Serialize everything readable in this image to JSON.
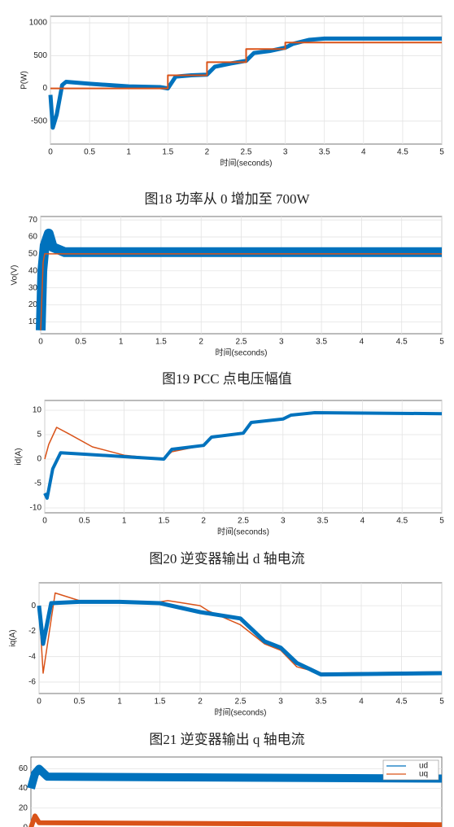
{
  "chart_data": [
    {
      "type": "line",
      "xlabel": "时间(seconds)",
      "ylabel": "P(W)",
      "caption": "图18  功率从 0 增加至 700W",
      "xlim": [
        0,
        5
      ],
      "ylim": [
        -850,
        1100
      ],
      "xticks": [
        0,
        0.5,
        1,
        1.5,
        2,
        2.5,
        3,
        3.5,
        4,
        4.5,
        5
      ],
      "yticks": [
        -500,
        0,
        500,
        1000
      ],
      "grid": true,
      "series": [
        {
          "color": "#0072bd",
          "x": [
            0,
            0.03,
            0.08,
            0.15,
            0.2,
            0.5,
            1,
            1.4,
            1.5,
            1.6,
            1.8,
            2,
            2.1,
            2.3,
            2.5,
            2.6,
            2.8,
            3,
            3.1,
            3.3,
            3.5,
            4,
            4.5,
            5
          ],
          "values": [
            -100,
            -600,
            -400,
            50,
            100,
            70,
            30,
            20,
            0,
            180,
            200,
            210,
            330,
            380,
            420,
            540,
            570,
            620,
            680,
            740,
            760,
            760,
            760,
            760
          ]
        },
        {
          "color": "#d95319",
          "x": [
            0,
            1.5,
            1.5,
            2,
            2,
            2.5,
            2.5,
            3,
            3,
            5
          ],
          "values": [
            0,
            0,
            200,
            200,
            400,
            400,
            600,
            600,
            700,
            700
          ]
        }
      ]
    },
    {
      "type": "line",
      "xlabel": "时间(seconds)",
      "ylabel": "Vo(V)",
      "caption": "图19  PCC 点电压幅值",
      "xlim": [
        0,
        5
      ],
      "ylim": [
        3,
        72
      ],
      "xticks": [
        0,
        0.5,
        1,
        1.5,
        2,
        2.5,
        3,
        3.5,
        4,
        4.5,
        5
      ],
      "yticks": [
        10,
        20,
        30,
        40,
        50,
        60,
        70
      ],
      "grid": true,
      "series": [
        {
          "color": "#0072bd",
          "x": [
            0,
            0.02,
            0.05,
            0.1,
            0.15,
            0.3,
            5
          ],
          "values": [
            5,
            40,
            55,
            62,
            54,
            51,
            51
          ]
        },
        {
          "color": "#d95319",
          "x": [
            0,
            0.03,
            0.05,
            5
          ],
          "values": [
            5,
            45,
            50,
            50
          ]
        }
      ]
    },
    {
      "type": "line",
      "xlabel": "时间(seconds)",
      "ylabel": "id(A)",
      "caption": "图20  逆变器输出 d 轴电流",
      "xlim": [
        0,
        5
      ],
      "ylim": [
        -11,
        12
      ],
      "xticks": [
        0,
        0.5,
        1,
        1.5,
        2,
        2.5,
        3,
        3.5,
        4,
        4.5,
        5
      ],
      "yticks": [
        -10,
        -5,
        0,
        5,
        10
      ],
      "grid": true,
      "series": [
        {
          "color": "#d95319",
          "x": [
            0,
            0.05,
            0.15,
            0.3,
            0.6,
            1,
            1.5,
            1.6,
            2,
            2.1,
            2.5,
            2.6,
            3,
            3.1,
            3.4,
            5
          ],
          "values": [
            0,
            3,
            6.5,
            5.2,
            2.5,
            0.8,
            0,
            1.5,
            2.8,
            4.5,
            5.5,
            7.5,
            8.2,
            9,
            9.6,
            9.3
          ]
        },
        {
          "color": "#0072bd",
          "x": [
            0,
            0.03,
            0.1,
            0.2,
            0.5,
            1,
            1.5,
            1.6,
            2,
            2.1,
            2.5,
            2.6,
            3,
            3.1,
            3.4,
            5
          ],
          "values": [
            -7,
            -8,
            -2,
            1.3,
            1,
            0.5,
            0,
            2,
            2.8,
            4.5,
            5.3,
            7.5,
            8.2,
            9,
            9.5,
            9.3
          ]
        }
      ]
    },
    {
      "type": "line",
      "xlabel": "时间(seconds)",
      "ylabel": "iq(A)",
      "caption": "图21  逆变器输出 q 轴电流",
      "xlim": [
        0,
        5
      ],
      "ylim": [
        -6.9,
        1.8
      ],
      "xticks": [
        0,
        0.5,
        1,
        1.5,
        2,
        2.5,
        3,
        3.5,
        4,
        4.5,
        5
      ],
      "yticks": [
        -6,
        -4,
        -2,
        0
      ],
      "grid": true,
      "series": [
        {
          "color": "#d95319",
          "x": [
            0,
            0.05,
            0.2,
            0.5,
            1,
            1.5,
            1.6,
            2,
            2.1,
            2.5,
            2.8,
            3,
            3.2,
            3.5,
            5
          ],
          "values": [
            0,
            -5.3,
            1,
            0.4,
            0.3,
            0.3,
            0.4,
            0,
            -0.4,
            -1.5,
            -3,
            -3.5,
            -4.8,
            -5.3,
            -5.2
          ]
        },
        {
          "color": "#0072bd",
          "x": [
            0,
            0.05,
            0.15,
            0.5,
            1,
            1.5,
            2,
            2.5,
            2.8,
            3,
            3.2,
            3.5,
            5
          ],
          "values": [
            0,
            -3,
            0.2,
            0.3,
            0.3,
            0.2,
            -0.5,
            -1,
            -2.8,
            -3.3,
            -4.5,
            -5.4,
            -5.3
          ]
        }
      ]
    },
    {
      "type": "line",
      "xlim": [
        0,
        5
      ],
      "ylim": [
        -2.6,
        72
      ],
      "yticks": [
        0,
        20,
        40,
        60
      ],
      "grid": true,
      "legend": "upper right",
      "series": [
        {
          "name": "ud",
          "color": "#0072bd",
          "x": [
            0,
            0.05,
            0.1,
            0.2,
            5
          ],
          "values": [
            40,
            55,
            60,
            52,
            50
          ]
        },
        {
          "name": "uq",
          "color": "#d95319",
          "x": [
            0,
            0.05,
            0.1,
            5
          ],
          "values": [
            0,
            12,
            5,
            3
          ]
        }
      ]
    }
  ]
}
